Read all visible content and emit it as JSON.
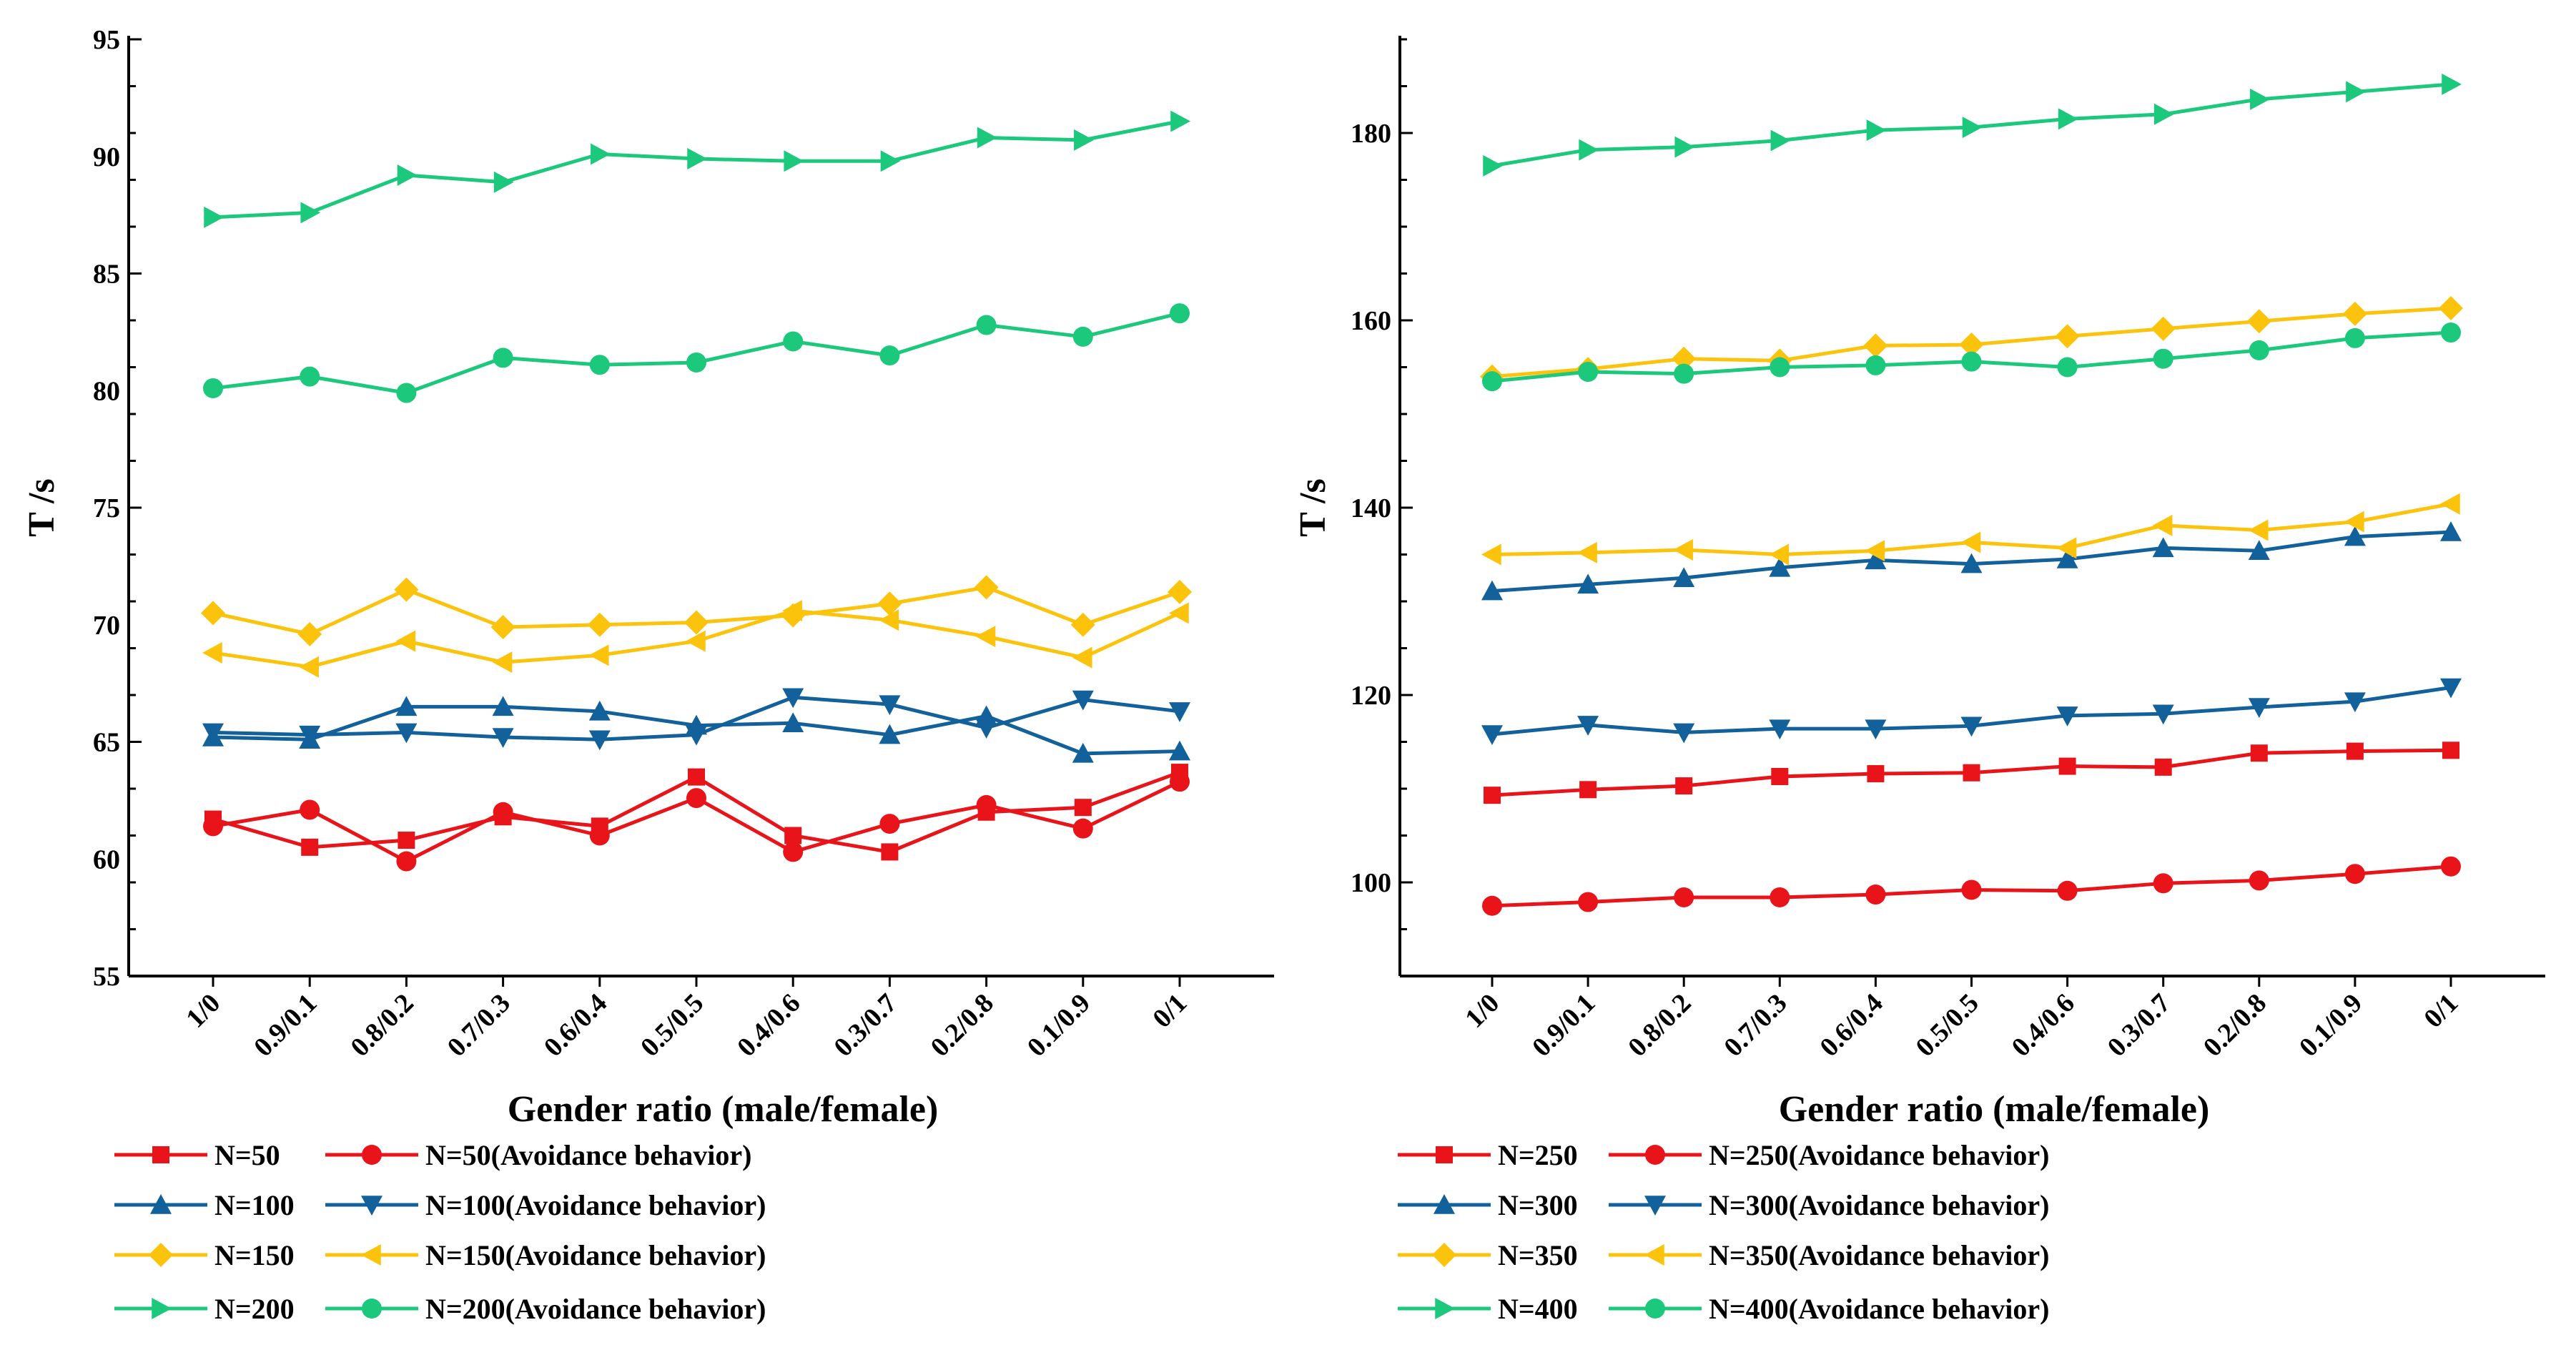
{
  "chart_data": [
    {
      "type": "line",
      "xlabel": "Gender ratio (male/female)",
      "ylabel": "T /s",
      "categories": [
        "1/0",
        "0.9/0.1",
        "0.8/0.2",
        "0.7/0.3",
        "0.6/0.4",
        "0.5/0.5",
        "0.4/0.6",
        "0.3/0.7",
        "0.2/0.8",
        "0.1/0.9",
        "0/1"
      ],
      "ylim": [
        55,
        95
      ],
      "yticks": [
        "55",
        "60",
        "65",
        "70",
        "75",
        "80",
        "85",
        "90",
        "95"
      ],
      "series": [
        {
          "name": "N=50",
          "color": "#e8141a",
          "marker": "square",
          "values": [
            61.7,
            60.5,
            60.8,
            61.8,
            61.4,
            63.5,
            61.0,
            60.3,
            62.0,
            62.2,
            63.7
          ]
        },
        {
          "name": "N=50(Avoidance behavior)",
          "color": "#e8141a",
          "marker": "circle",
          "values": [
            61.4,
            62.1,
            59.9,
            62.0,
            61.0,
            62.6,
            60.3,
            61.5,
            62.3,
            61.3,
            63.3
          ]
        },
        {
          "name": "N=100",
          "color": "#12619a",
          "marker": "triangle-up",
          "values": [
            65.2,
            65.1,
            66.5,
            66.5,
            66.3,
            65.7,
            65.8,
            65.3,
            66.1,
            64.5,
            64.6
          ]
        },
        {
          "name": "N=100(Avoidance behavior)",
          "color": "#12619a",
          "marker": "triangle-down",
          "values": [
            65.4,
            65.3,
            65.4,
            65.2,
            65.1,
            65.3,
            66.9,
            66.6,
            65.6,
            66.8,
            66.3
          ]
        },
        {
          "name": "N=150",
          "color": "#fcc30c",
          "marker": "diamond",
          "values": [
            70.5,
            69.6,
            71.5,
            69.9,
            70.0,
            70.1,
            70.4,
            70.9,
            71.6,
            70.0,
            71.4
          ]
        },
        {
          "name": "N=150(Avoidance behavior)",
          "color": "#fcc30c",
          "marker": "triangle-left",
          "values": [
            68.8,
            68.2,
            69.3,
            68.4,
            68.7,
            69.3,
            70.6,
            70.2,
            69.5,
            68.6,
            70.5
          ]
        },
        {
          "name": "N=200",
          "color": "#1cc87c",
          "marker": "triangle-right",
          "values": [
            87.4,
            87.6,
            89.2,
            88.9,
            90.1,
            89.9,
            89.8,
            89.8,
            90.8,
            90.7,
            91.5
          ]
        },
        {
          "name": "N=200(Avoidance behavior)",
          "color": "#1cc87c",
          "marker": "circle",
          "values": [
            80.1,
            80.6,
            79.9,
            81.4,
            81.1,
            81.2,
            82.1,
            81.5,
            82.8,
            82.3,
            83.3
          ]
        }
      ]
    },
    {
      "type": "line",
      "xlabel": "Gender ratio (male/female)",
      "ylabel": "T /s",
      "categories": [
        "1/0",
        "0.9/0.1",
        "0.8/0.2",
        "0.7/0.3",
        "0.6/0.4",
        "0.5/0.5",
        "0.4/0.6",
        "0.3/0.7",
        "0.2/0.8",
        "0.1/0.9",
        "0/1"
      ],
      "ylim": [
        90,
        190
      ],
      "yticks": [
        "100",
        "120",
        "140",
        "160",
        "180"
      ],
      "series": [
        {
          "name": "N=250",
          "color": "#e8141a",
          "marker": "square",
          "values": [
            109.3,
            109.9,
            110.3,
            111.3,
            111.6,
            111.7,
            112.4,
            112.3,
            113.8,
            114.0,
            114.1
          ]
        },
        {
          "name": "N=250(Avoidance behavior)",
          "color": "#e8141a",
          "marker": "circle",
          "values": [
            97.5,
            97.9,
            98.4,
            98.4,
            98.7,
            99.2,
            99.1,
            99.9,
            100.2,
            100.9,
            101.7
          ]
        },
        {
          "name": "N=300",
          "color": "#12619a",
          "marker": "triangle-up",
          "values": [
            131.1,
            131.8,
            132.5,
            133.6,
            134.4,
            134.0,
            134.5,
            135.7,
            135.4,
            136.9,
            137.4
          ]
        },
        {
          "name": "N=300(Avoidance behavior)",
          "color": "#12619a",
          "marker": "triangle-down",
          "values": [
            115.8,
            116.8,
            116.0,
            116.4,
            116.4,
            116.7,
            117.8,
            118.0,
            118.7,
            119.3,
            120.8
          ]
        },
        {
          "name": "N=350",
          "color": "#fcc30c",
          "marker": "diamond",
          "values": [
            154.0,
            154.8,
            155.9,
            155.7,
            157.3,
            157.4,
            158.3,
            159.1,
            159.9,
            160.7,
            161.3
          ]
        },
        {
          "name": "N=350(Avoidance behavior)",
          "color": "#fcc30c",
          "marker": "triangle-left",
          "values": [
            135.0,
            135.2,
            135.5,
            135.0,
            135.4,
            136.3,
            135.7,
            138.1,
            137.6,
            138.5,
            140.4
          ]
        },
        {
          "name": "N=400",
          "color": "#1cc87c",
          "marker": "triangle-right",
          "values": [
            176.5,
            178.2,
            178.5,
            179.2,
            180.3,
            180.6,
            181.5,
            182.0,
            183.6,
            184.4,
            185.2
          ]
        },
        {
          "name": "N=400(Avoidance behavior)",
          "color": "#1cc87c",
          "marker": "circle",
          "values": [
            153.5,
            154.5,
            154.3,
            155.0,
            155.2,
            155.6,
            155.0,
            155.9,
            156.8,
            158.1,
            158.7
          ]
        }
      ]
    }
  ]
}
